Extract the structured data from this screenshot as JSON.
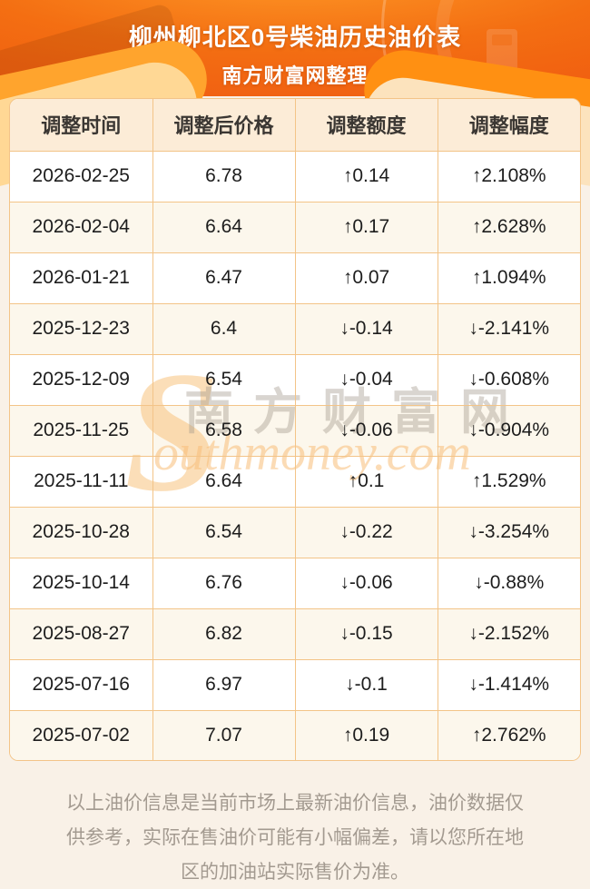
{
  "header": {
    "title": "柳州柳北区0号柴油历史油价表",
    "subtitle": "南方财富网整理"
  },
  "table": {
    "columns": [
      "调整时间",
      "调整后价格",
      "调整额度",
      "调整幅度"
    ],
    "rows": [
      {
        "date": "2026-02-25",
        "price": "6.78",
        "change": "↑0.14",
        "percent": "↑2.108%",
        "direction": "up"
      },
      {
        "date": "2026-02-04",
        "price": "6.64",
        "change": "↑0.17",
        "percent": "↑2.628%",
        "direction": "up"
      },
      {
        "date": "2026-01-21",
        "price": "6.47",
        "change": "↑0.07",
        "percent": "↑1.094%",
        "direction": "up"
      },
      {
        "date": "2025-12-23",
        "price": "6.4",
        "change": "↓-0.14",
        "percent": "↓-2.141%",
        "direction": "down"
      },
      {
        "date": "2025-12-09",
        "price": "6.54",
        "change": "↓-0.04",
        "percent": "↓-0.608%",
        "direction": "down"
      },
      {
        "date": "2025-11-25",
        "price": "6.58",
        "change": "↓-0.06",
        "percent": "↓-0.904%",
        "direction": "down"
      },
      {
        "date": "2025-11-11",
        "price": "6.64",
        "change": "↑0.1",
        "percent": "↑1.529%",
        "direction": "up"
      },
      {
        "date": "2025-10-28",
        "price": "6.54",
        "change": "↓-0.22",
        "percent": "↓-3.254%",
        "direction": "down"
      },
      {
        "date": "2025-10-14",
        "price": "6.76",
        "change": "↓-0.06",
        "percent": "↓-0.88%",
        "direction": "down"
      },
      {
        "date": "2025-08-27",
        "price": "6.82",
        "change": "↓-0.15",
        "percent": "↓-2.152%",
        "direction": "down"
      },
      {
        "date": "2025-07-16",
        "price": "6.97",
        "change": "↓-0.1",
        "percent": "↓-1.414%",
        "direction": "down"
      },
      {
        "date": "2025-07-02",
        "price": "7.07",
        "change": "↑0.19",
        "percent": "↑2.762%",
        "direction": "up"
      }
    ]
  },
  "watermark": {
    "swash": "S",
    "cn": "南方财富网",
    "en": "outhmoney.com"
  },
  "footer": {
    "disclaimer": "以上油价信息是当前市场上最新油价信息，油价数据仅供参考，实际在售油价可能有小幅偏差，请以您所在地区的加油站实际售价为准。"
  },
  "colors": {
    "up": "#fe0101",
    "down": "#1e9628",
    "border": "#f3c488",
    "header_orange": "#f1731a"
  },
  "chart_data": {
    "type": "table",
    "title": "柳州柳北区0号柴油历史油价表",
    "subtitle": "南方财富网整理",
    "columns": [
      "调整时间",
      "调整后价格",
      "调整额度",
      "调整幅度"
    ],
    "rows": [
      [
        "2026-02-25",
        6.78,
        0.14,
        2.108
      ],
      [
        "2026-02-04",
        6.64,
        0.17,
        2.628
      ],
      [
        "2026-01-21",
        6.47,
        0.07,
        1.094
      ],
      [
        "2025-12-23",
        6.4,
        -0.14,
        -2.141
      ],
      [
        "2025-12-09",
        6.54,
        -0.04,
        -0.608
      ],
      [
        "2025-11-25",
        6.58,
        -0.06,
        -0.904
      ],
      [
        "2025-11-11",
        6.64,
        0.1,
        1.529
      ],
      [
        "2025-10-28",
        6.54,
        -0.22,
        -3.254
      ],
      [
        "2025-10-14",
        6.76,
        -0.06,
        -0.88
      ],
      [
        "2025-08-27",
        6.82,
        -0.15,
        -2.152
      ],
      [
        "2025-07-16",
        6.97,
        -0.1,
        -1.414
      ],
      [
        "2025-07-02",
        7.07,
        0.19,
        2.762
      ]
    ],
    "percent_unit": "%",
    "up_color": "#fe0101",
    "down_color": "#1e9628"
  }
}
